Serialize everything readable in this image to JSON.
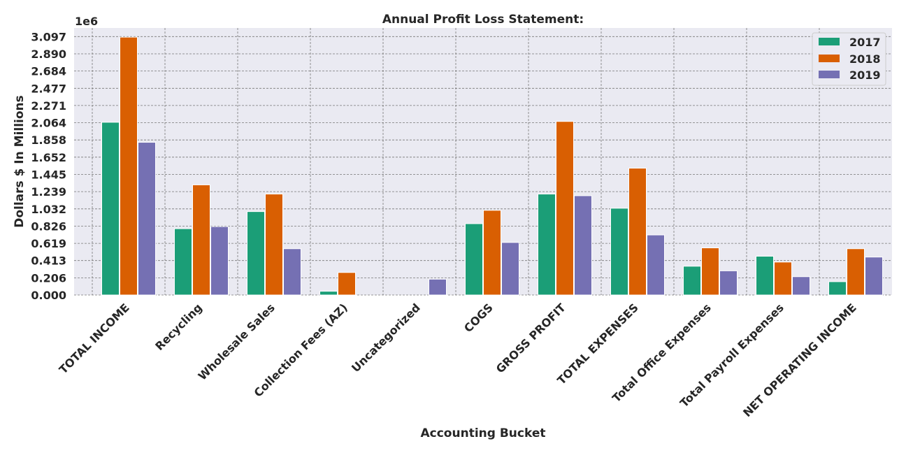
{
  "chart_data": {
    "type": "bar",
    "title": "Annual Profit Loss Statement:",
    "xlabel": "Accounting Bucket",
    "ylabel": "Dollars $ In Millions",
    "y_offset_text": "1e6",
    "y_scale": 1000000,
    "ylim": [
      0,
      3200000
    ],
    "yticks": [
      "0.000",
      "0.206",
      "0.413",
      "0.619",
      "0.826",
      "1.032",
      "1.239",
      "1.445",
      "1.652",
      "1.858",
      "2.064",
      "2.271",
      "2.477",
      "2.684",
      "2.890",
      "3.097"
    ],
    "grid": true,
    "legend_position": "top-right",
    "categories": [
      "TOTAL INCOME",
      "Recycling",
      "Wholesale Sales",
      "Collection Fees (AZ)",
      "Uncategorized",
      "COGS",
      "GROSS PROFIT",
      "TOTAL EXPENSES",
      "Total Office Expenses",
      "Total Payroll Expenses",
      "NET OPERATING INCOME"
    ],
    "series": [
      {
        "name": "2017",
        "color": "#1b9e77",
        "values": [
          2070000,
          795000,
          1000000,
          45000,
          0,
          855000,
          1210000,
          1040000,
          345000,
          465000,
          160000
        ]
      },
      {
        "name": "2018",
        "color": "#d95f02",
        "values": [
          3090000,
          1320000,
          1210000,
          270000,
          0,
          1015000,
          2080000,
          1520000,
          565000,
          395000,
          555000
        ]
      },
      {
        "name": "2019",
        "color": "#7570b3",
        "values": [
          1830000,
          820000,
          555000,
          0,
          190000,
          630000,
          1190000,
          720000,
          290000,
          220000,
          455000
        ]
      }
    ]
  }
}
